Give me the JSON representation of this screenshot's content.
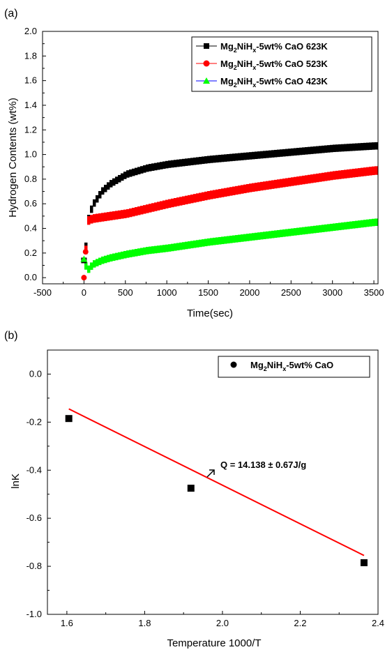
{
  "chart_data": [
    {
      "panel_label": "(a)",
      "type": "scatter",
      "xlabel": "Time(sec)",
      "ylabel": "Hydrogen Contents (wt%)",
      "xlim": [
        -500,
        3550
      ],
      "ylim": [
        -0.05,
        2.0
      ],
      "xticks": [
        -500,
        0,
        500,
        1000,
        1500,
        2000,
        2500,
        3000,
        3500
      ],
      "yticks": [
        0.0,
        0.2,
        0.4,
        0.6,
        0.8,
        1.0,
        1.2,
        1.4,
        1.6,
        1.8,
        2.0
      ],
      "xtick_labels": [
        "-500",
        "0",
        "500",
        "1000",
        "1500",
        "2000",
        "2500",
        "3000",
        "3500"
      ],
      "ytick_labels": [
        "0.0",
        "0.2",
        "0.4",
        "0.6",
        "0.8",
        "1.0",
        "1.2",
        "1.4",
        "1.6",
        "1.8",
        "2.0"
      ],
      "grid": false,
      "legend_position": "top-right",
      "series": [
        {
          "name": "Mg2NiHx-5wt% CaO 623K",
          "legend_parts": [
            "Mg",
            "2",
            "NiH",
            "x",
            "-5wt% CaO 623K"
          ],
          "color": "#000000",
          "marker": "square",
          "x": [
            0,
            10,
            50,
            100,
            200,
            300,
            500,
            750,
            1000,
            1500,
            2000,
            2500,
            3000,
            3500
          ],
          "y": [
            0.13,
            0.38,
            0.52,
            0.6,
            0.7,
            0.76,
            0.84,
            0.89,
            0.92,
            0.96,
            0.99,
            1.02,
            1.05,
            1.07
          ],
          "band": 0.06
        },
        {
          "name": "Mg2NiHx-5wt% CaO 523K",
          "legend_parts": [
            "Mg",
            "2",
            "NiH",
            "x",
            "-5wt% CaO 523K"
          ],
          "color": "#ff0000",
          "marker": "circle",
          "x": [
            0,
            10,
            50,
            100,
            200,
            300,
            500,
            750,
            1000,
            1500,
            2000,
            2500,
            3000,
            3500
          ],
          "y": [
            0.0,
            0.45,
            0.47,
            0.48,
            0.49,
            0.5,
            0.52,
            0.56,
            0.6,
            0.67,
            0.73,
            0.78,
            0.83,
            0.87
          ],
          "band": 0.07
        },
        {
          "name": "Mg2NiHx-5wt% CaO 423K",
          "legend_parts": [
            "Mg",
            "2",
            "NiH",
            "x",
            "-5wt% CaO 423K"
          ],
          "color": "#00ff00",
          "marker": "triangle",
          "x": [
            0,
            10,
            50,
            100,
            200,
            300,
            500,
            750,
            1000,
            1500,
            2000,
            2500,
            3000,
            3500
          ],
          "y": [
            0.15,
            0.04,
            0.08,
            0.11,
            0.14,
            0.16,
            0.19,
            0.22,
            0.24,
            0.29,
            0.33,
            0.37,
            0.41,
            0.45
          ],
          "band": 0.06
        }
      ],
      "early_points": [
        {
          "series": 0,
          "x": 0,
          "y": 0.14
        },
        {
          "series": 1,
          "x": 0,
          "y": 0.0
        },
        {
          "series": 1,
          "x": 20,
          "y": 0.21
        },
        {
          "series": 2,
          "x": 0,
          "y": 0.15
        }
      ]
    },
    {
      "panel_label": "(b)",
      "type": "scatter",
      "xlabel": "Temperature 1000/T",
      "ylabel": "lnK",
      "xlim": [
        1.55,
        2.4
      ],
      "ylim": [
        -1.0,
        0.1
      ],
      "xticks": [
        1.6,
        1.8,
        2.0,
        2.2,
        2.4
      ],
      "yticks": [
        -1.0,
        -0.8,
        -0.6,
        -0.4,
        -0.2,
        0.0
      ],
      "xtick_labels": [
        "1.6",
        "1.8",
        "2.0",
        "2.2",
        "2.4"
      ],
      "ytick_labels": [
        "-1.0",
        "-0.8",
        "-0.6",
        "-0.4",
        "-0.2",
        "0.0"
      ],
      "grid": false,
      "legend_position": "top-right",
      "series": [
        {
          "name": "Mg2NiHx-5wt% CaO",
          "legend_parts": [
            "Mg",
            "2",
            "NiH",
            "x",
            "-5wt% CaO"
          ],
          "color": "#000000",
          "marker": "square",
          "x": [
            1.605,
            1.919,
            2.364
          ],
          "y": [
            -0.185,
            -0.475,
            -0.785
          ]
        }
      ],
      "fit_line": {
        "color": "#ff0000",
        "x": [
          1.605,
          2.364
        ],
        "y": [
          -0.145,
          -0.755
        ]
      },
      "annotation": {
        "text": "Q = 14.138 ± 0.67J/g",
        "x": 1.98,
        "y": -0.4
      }
    }
  ]
}
